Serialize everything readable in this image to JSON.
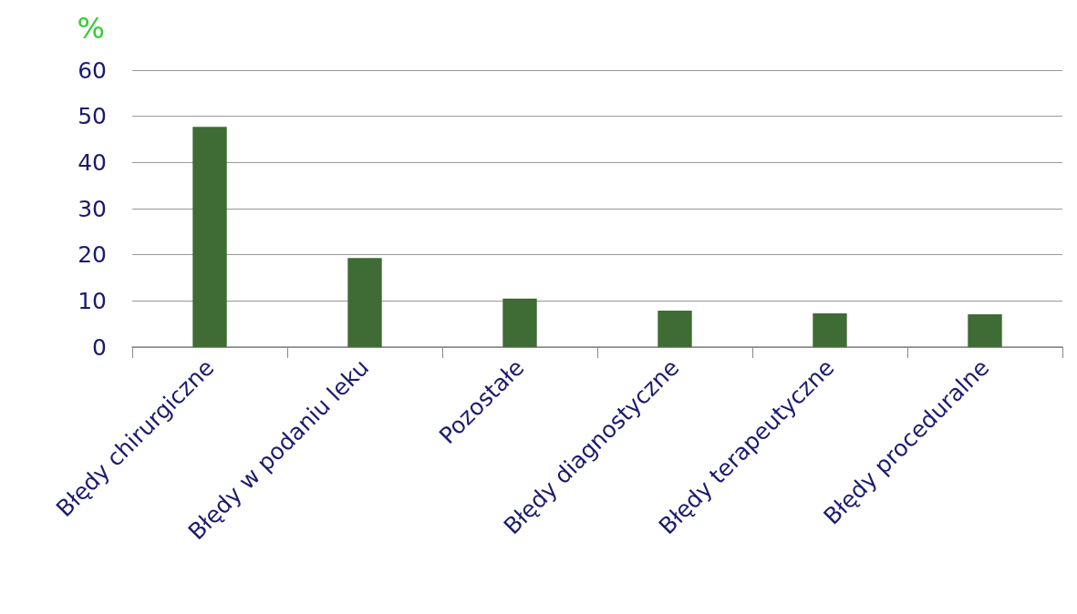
{
  "chart_data": {
    "type": "bar",
    "ylabel": "%",
    "categories": [
      "Błędy chirurgiczne",
      "Błędy w podaniu leku",
      "Pozostałe",
      "Błędy diagnostyczne",
      "Błędy terapeutyczne",
      "Błędy proceduralne"
    ],
    "values": [
      47.7,
      19.3,
      10.5,
      7.9,
      7.3,
      7.1
    ],
    "color": "#3f6b35",
    "ylim": [
      0,
      60
    ],
    "yticks": [
      0,
      10,
      20,
      30,
      40,
      50,
      60
    ],
    "grid": "y"
  }
}
